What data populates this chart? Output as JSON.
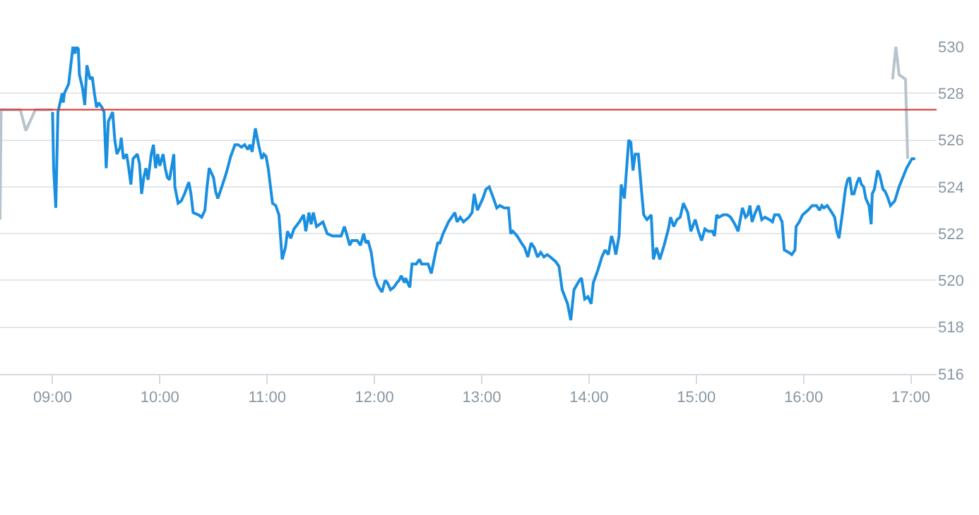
{
  "chart_data": {
    "type": "line",
    "xlim": [
      8.51,
      17.24
    ],
    "ylim": [
      516,
      530
    ],
    "xticks": [
      {
        "value": 9,
        "label": "09:00"
      },
      {
        "value": 10,
        "label": "10:00"
      },
      {
        "value": 11,
        "label": "11:00"
      },
      {
        "value": 12,
        "label": "12:00"
      },
      {
        "value": 13,
        "label": "13:00"
      },
      {
        "value": 14,
        "label": "14:00"
      },
      {
        "value": 15,
        "label": "15:00"
      },
      {
        "value": 16,
        "label": "16:00"
      },
      {
        "value": 17,
        "label": "17:00"
      }
    ],
    "yticks": [
      516,
      518,
      520,
      522,
      524,
      526,
      528,
      530
    ],
    "grid": "y",
    "marker": "none",
    "line_style": "solid",
    "ref_lines": [
      {
        "axis": "y",
        "value": 527.3,
        "color": "#d9312b"
      }
    ],
    "series": [
      {
        "color": "#b8c4cc",
        "x": [
          8.51,
          8.52,
          8.7,
          8.75,
          8.84,
          9.0
        ],
        "values": [
          522.6,
          527.3,
          527.3,
          526.4,
          527.3,
          527.3
        ]
      },
      {
        "color": "#1a8fe0",
        "x": [
          9.0,
          9.01,
          9.03,
          9.05,
          9.07,
          9.09,
          9.1,
          9.11,
          9.15,
          9.18,
          9.19,
          9.21,
          9.22,
          9.24,
          9.25,
          9.28,
          9.3,
          9.32,
          9.35,
          9.37,
          9.39,
          9.41,
          9.43,
          9.46,
          9.48,
          9.5,
          9.52,
          9.56,
          9.58,
          9.6,
          9.63,
          9.64,
          9.66,
          9.69,
          9.71,
          9.73,
          9.75,
          9.79,
          9.81,
          9.83,
          9.85,
          9.87,
          9.89,
          9.92,
          9.94,
          9.96,
          9.98,
          10.0,
          10.03,
          10.05,
          10.07,
          10.09,
          10.13,
          10.14,
          10.17,
          10.2,
          10.23,
          10.27,
          10.29,
          10.31,
          10.36,
          10.39,
          10.42,
          10.44,
          10.46,
          10.5,
          10.52,
          10.54,
          10.57,
          10.62,
          10.66,
          10.7,
          10.73,
          10.76,
          10.79,
          10.82,
          10.84,
          10.86,
          10.89,
          10.92,
          10.95,
          10.97,
          10.99,
          11.01,
          11.05,
          11.08,
          11.11,
          11.14,
          11.17,
          11.19,
          11.22,
          11.25,
          11.3,
          11.34,
          11.36,
          11.39,
          11.41,
          11.43,
          11.46,
          11.52,
          11.56,
          11.61,
          11.69,
          11.72,
          11.74,
          11.77,
          11.79,
          11.84,
          11.87,
          11.9,
          11.92,
          11.94,
          11.97,
          12.0,
          12.03,
          12.07,
          12.1,
          12.12,
          12.15,
          12.18,
          12.21,
          12.23,
          12.25,
          12.28,
          12.29,
          12.33,
          12.35,
          12.39,
          12.42,
          12.44,
          12.5,
          12.53,
          12.57,
          12.59,
          12.61,
          12.64,
          12.69,
          12.72,
          12.75,
          12.77,
          12.8,
          12.83,
          12.88,
          12.91,
          12.93,
          12.96,
          13.01,
          13.04,
          13.07,
          13.11,
          13.14,
          13.17,
          13.21,
          13.25,
          13.27,
          13.29,
          13.33,
          13.37,
          13.4,
          13.43,
          13.46,
          13.49,
          13.52,
          13.55,
          13.58,
          13.61,
          13.64,
          13.69,
          13.72,
          13.75,
          13.8,
          13.83,
          13.86,
          13.91,
          13.93,
          13.96,
          13.99,
          14.02,
          14.04,
          14.08,
          14.12,
          14.15,
          14.18,
          14.21,
          14.23,
          14.25,
          14.28,
          14.3,
          14.33,
          14.37,
          14.39,
          14.41,
          14.43,
          14.46,
          14.49,
          14.51,
          14.54,
          14.58,
          14.6,
          14.63,
          14.66,
          14.7,
          14.74,
          14.76,
          14.79,
          14.82,
          14.85,
          14.88,
          14.92,
          14.95,
          14.99,
          15.02,
          15.05,
          15.08,
          15.11,
          15.15,
          15.17,
          15.19,
          15.21,
          15.25,
          15.29,
          15.32,
          15.36,
          15.39,
          15.43,
          15.46,
          15.48,
          15.5,
          15.52,
          15.55,
          15.58,
          15.61,
          15.64,
          15.68,
          15.71,
          15.73,
          15.77,
          15.8,
          15.82,
          15.86,
          15.89,
          15.92,
          15.93,
          15.96,
          15.99,
          16.04,
          16.08,
          16.12,
          16.15,
          16.17,
          16.19,
          16.22,
          16.25,
          16.29,
          16.31,
          16.33,
          16.36,
          16.39,
          16.41,
          16.43,
          16.45,
          16.47,
          16.5,
          16.52,
          16.54,
          16.56,
          16.58,
          16.61,
          16.63,
          16.64,
          16.66,
          16.69,
          16.71,
          16.74,
          16.76,
          16.78,
          16.81,
          16.85,
          16.89,
          16.96,
          17.01,
          17.04
        ],
        "values": [
          527.2,
          524.8,
          523.1,
          527.2,
          527.6,
          528.0,
          527.6,
          528.0,
          528.4,
          529.6,
          530.0,
          529.7,
          530.0,
          529.9,
          528.8,
          528.2,
          527.5,
          529.2,
          528.6,
          528.7,
          528.0,
          527.4,
          527.6,
          527.4,
          527.2,
          524.8,
          526.8,
          527.2,
          526.0,
          525.4,
          525.7,
          526.1,
          525.2,
          525.4,
          524.8,
          524.1,
          525.2,
          525.4,
          525.0,
          523.7,
          524.4,
          524.8,
          524.3,
          525.4,
          525.8,
          524.8,
          525.4,
          524.9,
          525.4,
          524.8,
          524.4,
          524.3,
          525.4,
          524.0,
          523.3,
          523.4,
          523.7,
          524.2,
          523.7,
          522.9,
          522.8,
          522.7,
          523.0,
          524.0,
          524.8,
          524.4,
          523.8,
          523.5,
          523.9,
          524.6,
          525.3,
          525.8,
          525.8,
          525.7,
          525.8,
          525.6,
          525.8,
          525.5,
          526.5,
          525.8,
          525.2,
          525.4,
          525.3,
          524.8,
          523.3,
          523.2,
          522.8,
          520.9,
          521.4,
          522.1,
          521.8,
          522.2,
          522.5,
          522.8,
          522.1,
          522.9,
          522.4,
          522.9,
          522.3,
          522.5,
          522.0,
          521.9,
          521.9,
          522.3,
          522.0,
          521.5,
          521.7,
          521.7,
          521.5,
          522.0,
          521.6,
          521.7,
          521.2,
          520.2,
          519.8,
          519.5,
          520.0,
          519.9,
          519.6,
          519.7,
          519.9,
          520.0,
          520.2,
          519.9,
          520.1,
          519.7,
          520.7,
          520.7,
          520.9,
          520.7,
          520.7,
          520.3,
          521.2,
          521.6,
          521.6,
          522.0,
          522.5,
          522.7,
          522.9,
          522.5,
          522.7,
          522.5,
          522.7,
          522.9,
          523.7,
          523.0,
          523.5,
          523.9,
          524.0,
          523.5,
          523.1,
          523.2,
          523.1,
          523.1,
          522.0,
          522.1,
          521.9,
          521.6,
          521.4,
          521.0,
          521.6,
          521.4,
          521.0,
          521.2,
          521.0,
          521.1,
          521.0,
          520.8,
          520.6,
          519.6,
          519.0,
          518.3,
          519.6,
          520.0,
          520.1,
          519.2,
          519.3,
          519.0,
          519.9,
          520.4,
          521.0,
          521.3,
          521.1,
          521.9,
          521.6,
          521.1,
          521.9,
          524.1,
          523.5,
          526.0,
          525.9,
          524.7,
          525.4,
          525.4,
          523.8,
          522.8,
          522.6,
          522.8,
          520.9,
          521.4,
          520.9,
          521.5,
          522.2,
          522.7,
          522.3,
          522.6,
          522.7,
          523.3,
          522.9,
          522.1,
          522.6,
          522.1,
          521.7,
          522.2,
          522.1,
          522.1,
          521.9,
          522.8,
          522.7,
          522.8,
          522.8,
          522.7,
          522.4,
          522.1,
          523.1,
          522.7,
          522.8,
          523.2,
          522.5,
          522.9,
          523.2,
          522.6,
          522.7,
          522.6,
          522.5,
          522.8,
          522.8,
          522.5,
          521.3,
          521.2,
          521.1,
          521.3,
          522.3,
          522.5,
          522.8,
          523.0,
          523.2,
          523.2,
          523.0,
          523.2,
          523.1,
          523.2,
          523.0,
          522.7,
          522.1,
          521.8,
          522.8,
          523.9,
          524.3,
          524.4,
          523.7,
          523.7,
          524.2,
          524.4,
          524.1,
          524.0,
          523.5,
          523.2,
          522.4,
          523.7,
          523.9,
          524.7,
          524.5,
          523.9,
          523.8,
          523.6,
          523.2,
          523.4,
          524.0,
          524.8,
          525.2,
          525.2
        ]
      },
      {
        "color": "#b8c4cc",
        "x": [
          16.83,
          16.86,
          16.89,
          16.95,
          16.97
        ],
        "values": [
          528.6,
          530.0,
          528.8,
          528.6,
          525.2
        ]
      }
    ]
  }
}
